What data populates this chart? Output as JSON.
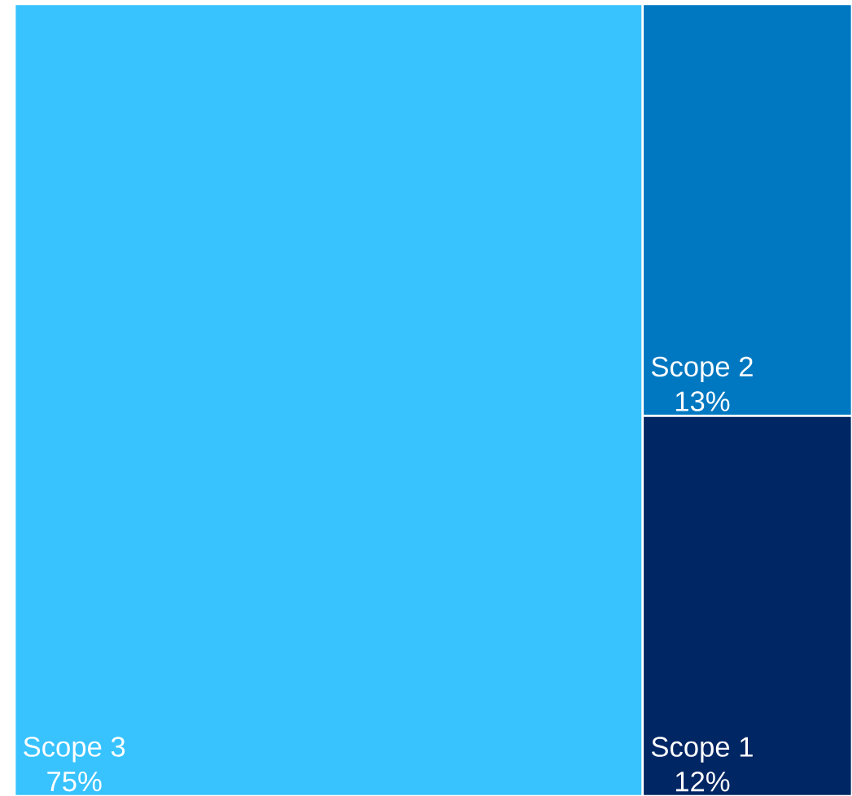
{
  "chart_data": {
    "type": "other",
    "categories": [
      "Scope 3",
      "Scope 2",
      "Scope 1"
    ],
    "values": [
      75,
      13,
      12
    ],
    "value_labels": [
      "75%",
      "13%",
      "12%"
    ],
    "colors": [
      "#38c3ff",
      "#0078c1",
      "#002664"
    ]
  }
}
